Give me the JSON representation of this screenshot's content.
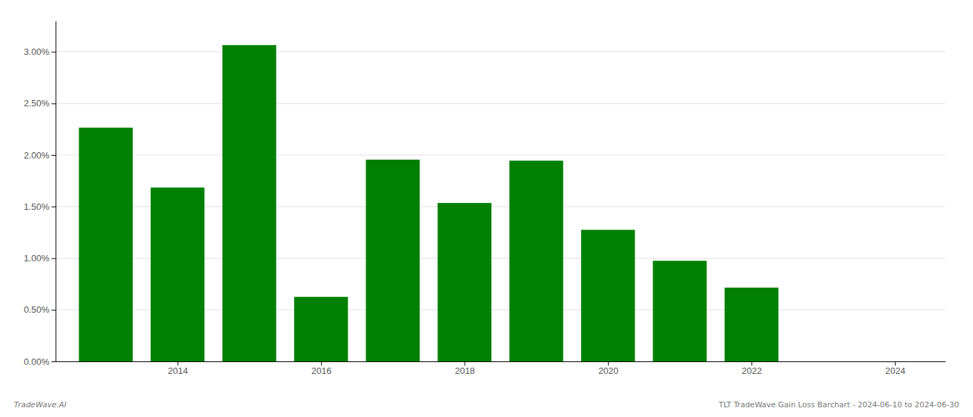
{
  "chart_data": {
    "type": "bar",
    "x": [
      2013,
      2014,
      2015,
      2016,
      2017,
      2018,
      2019,
      2020,
      2021,
      2022,
      2023
    ],
    "values": [
      0.02265,
      0.01685,
      0.03065,
      0.00625,
      0.01955,
      0.01535,
      0.01945,
      0.01275,
      0.00975,
      0.00715,
      0.0
    ],
    "color": "#008000",
    "xlim": [
      2012.3,
      2024.7
    ],
    "xticks": [
      2014,
      2016,
      2018,
      2020,
      2022,
      2024
    ],
    "ylim": [
      0,
      0.033
    ],
    "yticks": [
      {
        "value": 0.0,
        "label": "0.00%"
      },
      {
        "value": 0.005,
        "label": "0.50%"
      },
      {
        "value": 0.01,
        "label": "1.00%"
      },
      {
        "value": 0.015,
        "label": "1.50%"
      },
      {
        "value": 0.02,
        "label": "2.00%"
      },
      {
        "value": 0.025,
        "label": "2.50%"
      },
      {
        "value": 0.03,
        "label": "3.00%"
      }
    ],
    "grid": true,
    "annotations": [
      "TradeWave.AI",
      "TLT TradeWave Gain Loss Barchart - 2024-06-10 to 2024-06-30"
    ]
  }
}
